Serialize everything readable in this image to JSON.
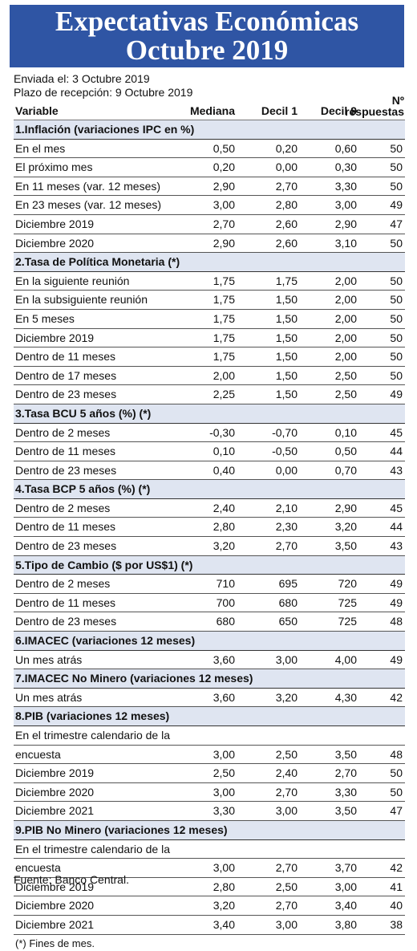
{
  "title": {
    "line1": "Expectativas Económicas",
    "line2": "Octubre 2019"
  },
  "sent": "Enviada el: 3 Octubre 2019",
  "deadline": "Plazo de recepción: 9 Octubre 2019",
  "columns": {
    "variable": "Variable",
    "median": "Mediana",
    "d1": "Decil 1",
    "d9": "Decil 9",
    "n_top": "Nº",
    "n_bottom": "respuestas"
  },
  "rows": [
    {
      "t": "s",
      "label": "1.Inflación (variaciones IPC en %)"
    },
    {
      "t": "r",
      "label": "En el mes",
      "v": [
        "0,50",
        "0,20",
        "0,60",
        "50"
      ]
    },
    {
      "t": "r",
      "label": "El próximo mes",
      "v": [
        "0,20",
        "0,00",
        "0,30",
        "50"
      ]
    },
    {
      "t": "r",
      "label": "En 11 meses (var. 12 meses)",
      "v": [
        "2,90",
        "2,70",
        "3,30",
        "50"
      ]
    },
    {
      "t": "r",
      "label": "En 23 meses (var. 12 meses)",
      "v": [
        "3,00",
        "2,80",
        "3,00",
        "49"
      ]
    },
    {
      "t": "r",
      "label": "Diciembre 2019",
      "v": [
        "2,70",
        "2,60",
        "2,90",
        "47"
      ]
    },
    {
      "t": "r",
      "label": "Diciembre 2020",
      "v": [
        "2,90",
        "2,60",
        "3,10",
        "50"
      ]
    },
    {
      "t": "s",
      "label": "2.Tasa de Política Monetaria  (*)"
    },
    {
      "t": "r",
      "label": "En la siguiente reunión",
      "v": [
        "1,75",
        "1,75",
        "2,00",
        "50"
      ]
    },
    {
      "t": "r",
      "label": "En la subsiguiente reunión",
      "v": [
        "1,75",
        "1,50",
        "2,00",
        "50"
      ]
    },
    {
      "t": "r",
      "label": "En 5 meses",
      "v": [
        "1,75",
        "1,50",
        "2,00",
        "50"
      ]
    },
    {
      "t": "r",
      "label": "Diciembre 2019",
      "v": [
        "1,75",
        "1,50",
        "2,00",
        "50"
      ]
    },
    {
      "t": "r",
      "label": "Dentro de 11 meses",
      "v": [
        "1,75",
        "1,50",
        "2,00",
        "50"
      ]
    },
    {
      "t": "r",
      "label": "Dentro de 17 meses",
      "v": [
        "2,00",
        "1,50",
        "2,50",
        "50"
      ]
    },
    {
      "t": "r",
      "label": "Dentro de 23 meses",
      "v": [
        "2,25",
        "1,50",
        "2,50",
        "49"
      ]
    },
    {
      "t": "s",
      "label": "3.Tasa BCU 5 años  (%)  (*)"
    },
    {
      "t": "r",
      "label": "Dentro de 2 meses",
      "v": [
        "-0,30",
        "-0,70",
        "0,10",
        "45"
      ]
    },
    {
      "t": "r",
      "label": "Dentro de 11 meses",
      "v": [
        "0,10",
        "-0,50",
        "0,50",
        "44"
      ]
    },
    {
      "t": "r",
      "label": "Dentro de 23 meses",
      "v": [
        "0,40",
        "0,00",
        "0,70",
        "43"
      ]
    },
    {
      "t": "s",
      "label": "4.Tasa BCP 5 años  (%) (*)"
    },
    {
      "t": "r",
      "label": "Dentro de 2 meses",
      "v": [
        "2,40",
        "2,10",
        "2,90",
        "45"
      ]
    },
    {
      "t": "r",
      "label": "Dentro de 11 meses",
      "v": [
        "2,80",
        "2,30",
        "3,20",
        "44"
      ]
    },
    {
      "t": "r",
      "label": "Dentro de 23 meses",
      "v": [
        "3,20",
        "2,70",
        "3,50",
        "43"
      ]
    },
    {
      "t": "s",
      "label": "5.Tipo de Cambio  ($ por US$1) (*)"
    },
    {
      "t": "r",
      "label": "Dentro de 2 meses",
      "v": [
        "710",
        "695",
        "720",
        "49"
      ]
    },
    {
      "t": "r",
      "label": "Dentro de 11 meses",
      "v": [
        "700",
        "680",
        "725",
        "49"
      ]
    },
    {
      "t": "r",
      "label": "Dentro de 23 meses",
      "v": [
        "680",
        "650",
        "725",
        "48"
      ]
    },
    {
      "t": "s",
      "label": "6.IMACEC  (variaciones 12 meses)"
    },
    {
      "t": "r",
      "label": "Un mes atrás",
      "v": [
        "3,60",
        "3,00",
        "4,00",
        "49"
      ]
    },
    {
      "t": "s",
      "label": "7.IMACEC No Minero (variaciones 12 meses)"
    },
    {
      "t": "r",
      "label": "Un mes atrás",
      "v": [
        "3,60",
        "3,20",
        "4,30",
        "42"
      ]
    },
    {
      "t": "s",
      "label": "8.PIB  (variaciones 12 meses)"
    },
    {
      "t": "r",
      "label": "En el trimestre calendario de la",
      "v": [
        "",
        "",
        "",
        ""
      ]
    },
    {
      "t": "r",
      "label": "encuesta",
      "v": [
        "3,00",
        "2,50",
        "3,50",
        "48"
      ]
    },
    {
      "t": "r",
      "label": "Diciembre 2019",
      "v": [
        "2,50",
        "2,40",
        "2,70",
        "50"
      ]
    },
    {
      "t": "r",
      "label": "Diciembre 2020",
      "v": [
        "3,00",
        "2,70",
        "3,30",
        "50"
      ]
    },
    {
      "t": "r",
      "label": "Diciembre 2021",
      "v": [
        "3,30",
        "3,00",
        "3,50",
        "47"
      ]
    },
    {
      "t": "s",
      "label": "9.PIB No Minero (variaciones 12 meses)"
    },
    {
      "t": "r",
      "label": "En el trimestre calendario de la",
      "v": [
        "",
        "",
        "",
        ""
      ]
    },
    {
      "t": "r",
      "label": "encuesta",
      "v": [
        "3,00",
        "2,70",
        "3,70",
        "42"
      ]
    },
    {
      "t": "r",
      "label": "Diciembre 2019",
      "v": [
        "2,80",
        "2,50",
        "3,00",
        "41"
      ]
    },
    {
      "t": "r",
      "label": "Diciembre 2020",
      "v": [
        "3,20",
        "2,70",
        "3,40",
        "40"
      ]
    },
    {
      "t": "r",
      "label": "Diciembre 2021",
      "v": [
        "3,40",
        "3,00",
        "3,80",
        "38"
      ]
    }
  ],
  "note": "(*) Fines de mes.",
  "source": "Fuente: Banco Central."
}
